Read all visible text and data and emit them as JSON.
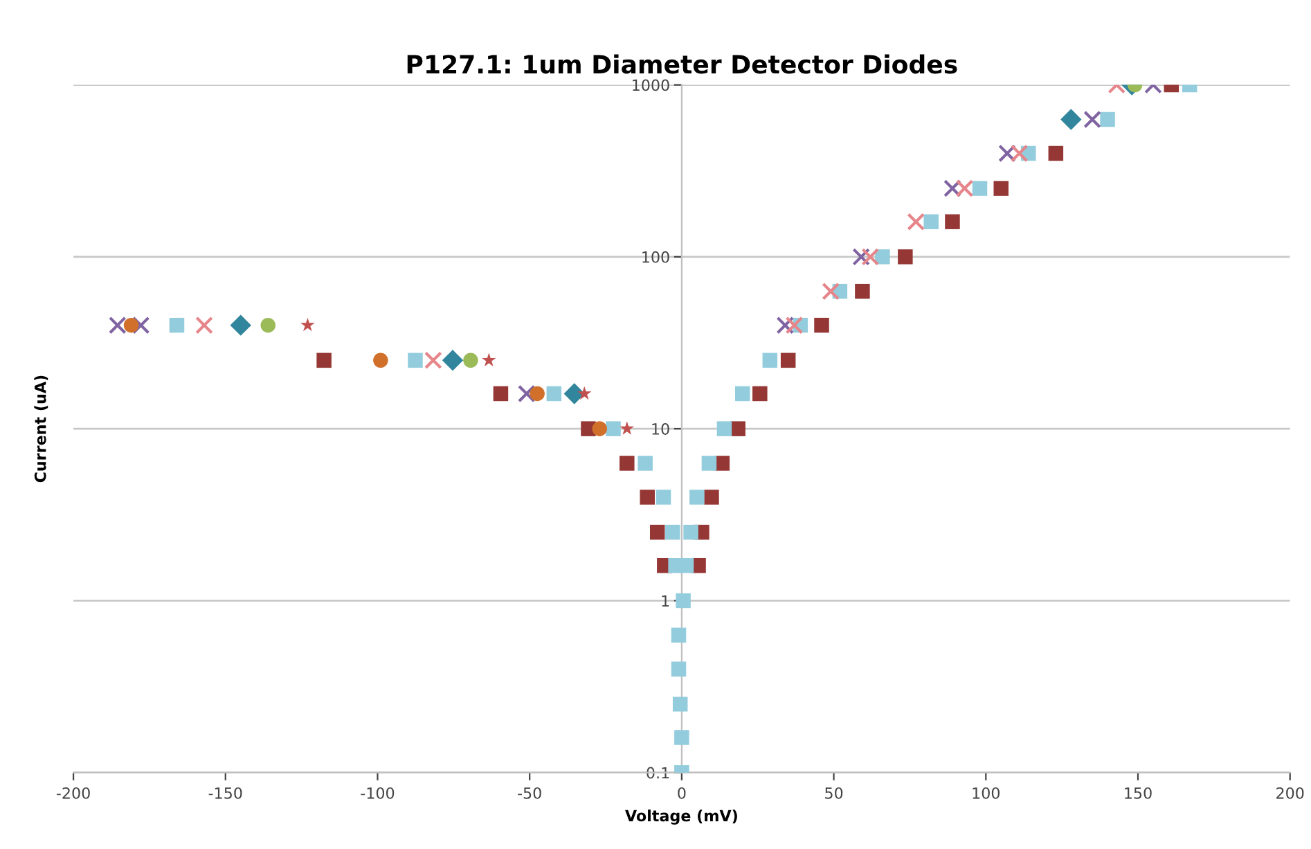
{
  "chart_data": {
    "type": "scatter",
    "title": "P127.1: 1um Diameter Detector Diodes",
    "xlabel": "Voltage (mV)",
    "ylabel": "Current (uA)",
    "log": "y",
    "grid": "y",
    "xlim": [
      -200,
      200
    ],
    "xticks": [
      -200,
      -150,
      -100,
      -50,
      0,
      50,
      100,
      150,
      200
    ],
    "ylim": [
      0.1,
      1000
    ],
    "yticks": [
      0.1,
      1,
      10,
      100,
      1000
    ],
    "series": [
      {
        "color": "#953735",
        "marker": "square",
        "x": [
          -117.6,
          -59.5,
          -30.7,
          -18,
          -11.3,
          -8,
          -5.7,
          5.5,
          6.6,
          9.8,
          13.3,
          18.5,
          25.7,
          35,
          46,
          59.4,
          73.5,
          89,
          105,
          123,
          161
        ],
        "values": [
          25,
          16,
          10,
          6.3,
          4,
          2.5,
          1.6,
          1.6,
          2.5,
          4,
          6.3,
          10,
          16,
          25,
          40,
          63,
          100,
          160,
          250,
          400,
          1000
        ]
      },
      {
        "color": "#93cddd",
        "marker": "square",
        "x": [
          -166,
          -87.6,
          -42,
          -22.5,
          -12,
          -6,
          -3,
          -2,
          0,
          0,
          -0.5,
          -1,
          -1,
          0.5,
          1.5,
          3,
          5,
          9,
          14,
          20,
          29,
          39,
          52,
          66,
          82,
          98,
          114,
          140,
          167
        ],
        "values": [
          40,
          25,
          16,
          10,
          6.3,
          4,
          2.5,
          1.6,
          0.1,
          0.16,
          0.25,
          0.4,
          0.63,
          1,
          1.6,
          2.5,
          4,
          6.3,
          10,
          16,
          25,
          40,
          63,
          100,
          160,
          250,
          400,
          630,
          1000
        ]
      },
      {
        "color": "#8064a2",
        "marker": "cross",
        "x": [
          -185.5,
          -177.8,
          -51,
          34,
          59,
          89,
          107,
          135,
          155
        ],
        "values": [
          40,
          40,
          16,
          40,
          100,
          250,
          400,
          630,
          1000
        ]
      },
      {
        "color": "#d0702a",
        "marker": "circle",
        "x": [
          -181,
          -99,
          -47.5,
          -27
        ],
        "values": [
          40,
          25,
          16,
          10
        ]
      },
      {
        "color": "#e6858a",
        "marker": "cross",
        "x": [
          -157,
          -81.7,
          37,
          49,
          62,
          77,
          93,
          111,
          143
        ],
        "values": [
          40,
          25,
          40,
          63,
          100,
          160,
          250,
          400,
          1000
        ]
      },
      {
        "color": "#31859c",
        "marker": "diamond",
        "x": [
          -145,
          -75.3,
          -35.3,
          128,
          148
        ],
        "values": [
          40,
          25,
          16,
          630,
          1000
        ]
      },
      {
        "color": "#9bbb59",
        "marker": "circle",
        "x": [
          -136,
          -69.4,
          149
        ],
        "values": [
          40,
          25,
          1000
        ]
      },
      {
        "color": "#c0504d",
        "marker": "star",
        "x": [
          -123,
          -63.4,
          -32,
          -18
        ],
        "values": [
          40,
          25,
          16,
          10
        ]
      }
    ]
  }
}
